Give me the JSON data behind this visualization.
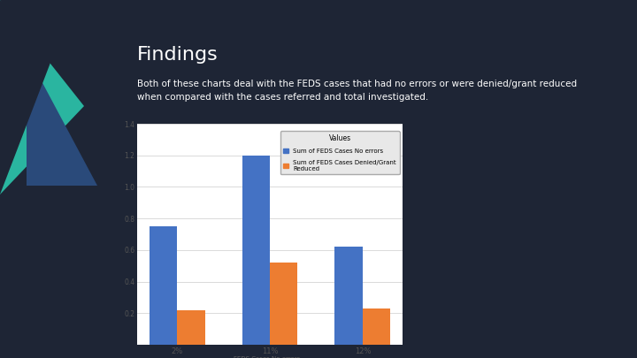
{
  "title": "Findings",
  "subtitle": "Both of these charts deal with the FEDS cases that had no errors or were denied/grant reduced\nwhen compared with the cases referred and total investigated.",
  "background_color": "#1e2535",
  "title_color": "#ffffff",
  "subtitle_color": "#ffffff",
  "chart_bg": "#ffffff",
  "categories": [
    "2%",
    "11%",
    "12%"
  ],
  "series1_values": [
    0.75,
    1.2,
    0.62
  ],
  "series2_values": [
    0.22,
    0.52,
    0.23
  ],
  "series1_color": "#4472c4",
  "series2_color": "#ed7d31",
  "series1_label": "Sum of FEDS Cases No errors",
  "series2_label": "Sum of FEDS Cases Denied/Grant\nReduced",
  "legend_title": "Values",
  "xlabel": "FEDS Cases No errors...",
  "ylim": [
    0,
    1.4
  ],
  "yticks": [
    0,
    0.2,
    0.4,
    0.6,
    0.8,
    1.0,
    1.2,
    1.4
  ],
  "figsize": [
    7.2,
    4.05
  ],
  "dpi": 100,
  "bar_width": 0.3,
  "teal_color": "#2ab5a0",
  "blue_tri_color": "#2a4a7a"
}
